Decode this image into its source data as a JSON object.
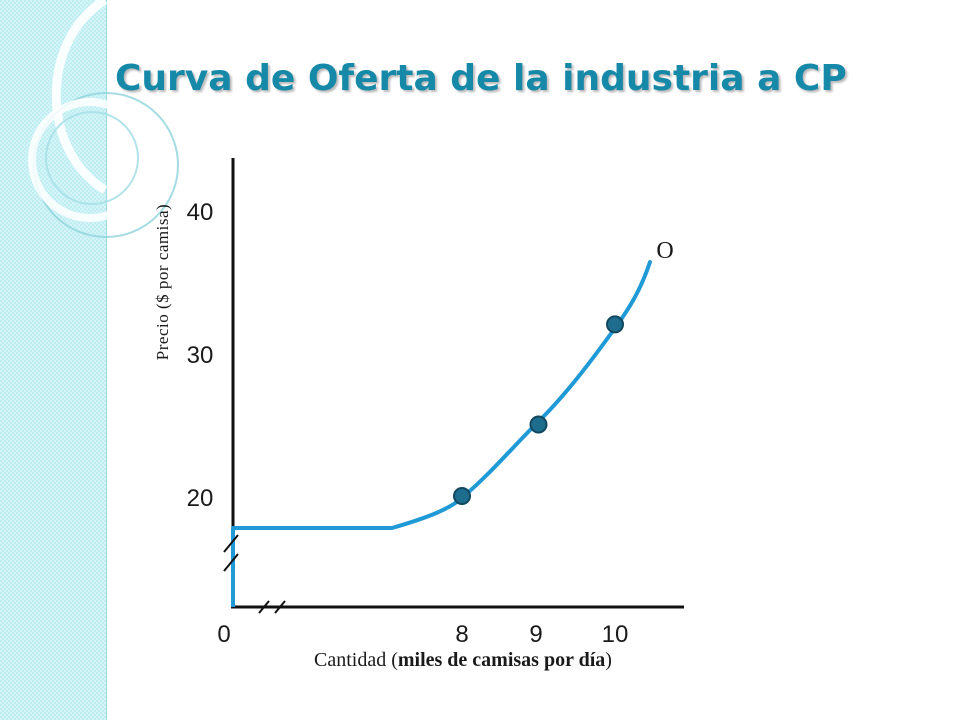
{
  "title": "Curva de Oferta de la industria a CP",
  "chart_data": {
    "type": "line",
    "xlabel": {
      "prefix": "Cantidad (",
      "bold": "miles de camisas por día",
      "suffix": ")"
    },
    "ylabel": "Precio ($ por camisa)",
    "x_ticks": [
      "0",
      "8",
      "9",
      "10"
    ],
    "y_ticks": [
      "20",
      "30",
      "40"
    ],
    "series": [
      {
        "name": "O",
        "color": "#1f9ad6",
        "points": [
          {
            "x": 8,
            "y": 20
          },
          {
            "x": 9,
            "y": 25
          },
          {
            "x": 10,
            "y": 32
          }
        ]
      }
    ],
    "axis_breaks": [
      "x",
      "y"
    ],
    "grid": false
  }
}
